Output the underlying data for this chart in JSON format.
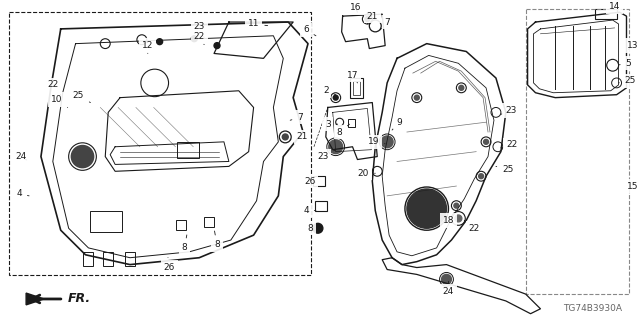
{
  "fig_width": 6.4,
  "fig_height": 3.2,
  "dpi": 100,
  "background_color": "#ffffff",
  "line_color": "#1a1a1a",
  "diagram_code": "TG74B3930A",
  "gray": "#888888",
  "darkgray": "#555555",
  "annotation_fontsize": 6.5
}
